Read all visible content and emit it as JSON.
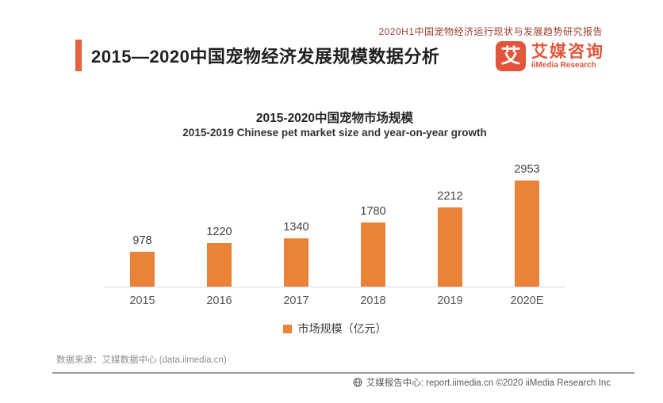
{
  "page": {
    "report_tag": "2020H1中国宠物经济运行现状与发展趋势研究报告",
    "title": "2015—2020中国宠物经济发展规模数据分析",
    "accent_color": "#e7623c"
  },
  "logo": {
    "glyph": "艾",
    "name_cn": "艾媒咨询",
    "name_en": "iiMedia Research",
    "brand_color": "#e2563a"
  },
  "chart_data": {
    "type": "bar",
    "title": "2015-2020中国宠物市场规模",
    "subtitle": "2015-2019 Chinese pet market size and year-on-year growth",
    "categories": [
      "2015",
      "2016",
      "2017",
      "2018",
      "2019",
      "2020E"
    ],
    "values": [
      978,
      1220,
      1340,
      1780,
      2212,
      2953
    ],
    "series_name": "市场规模（亿元）",
    "bar_color": "#ea8238",
    "ylabel": "",
    "xlabel": "",
    "ylim": [
      0,
      3200
    ],
    "grid": false,
    "legend_position": "bottom"
  },
  "footer": {
    "source": "数据来源：艾媒数据中心 (data.iimedia.cn)",
    "report_center": "艾媒报告中心: report.iimedia.cn ©2020 iiMedia Research Inc"
  }
}
